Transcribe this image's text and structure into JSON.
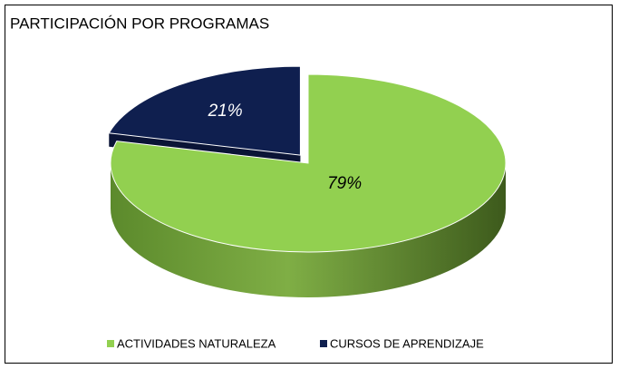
{
  "chart_data": {
    "type": "pie",
    "title": "PARTICIPACIÓN POR PROGRAMAS",
    "categories": [
      "ACTIVIDADES NATURALEZA",
      "CURSOS DE APRENDIZAJE"
    ],
    "values": [
      79,
      21
    ],
    "value_labels": [
      "79%",
      "21%"
    ],
    "colors": [
      "#92d050",
      "#0f1f4f"
    ],
    "legend": "bottom"
  }
}
